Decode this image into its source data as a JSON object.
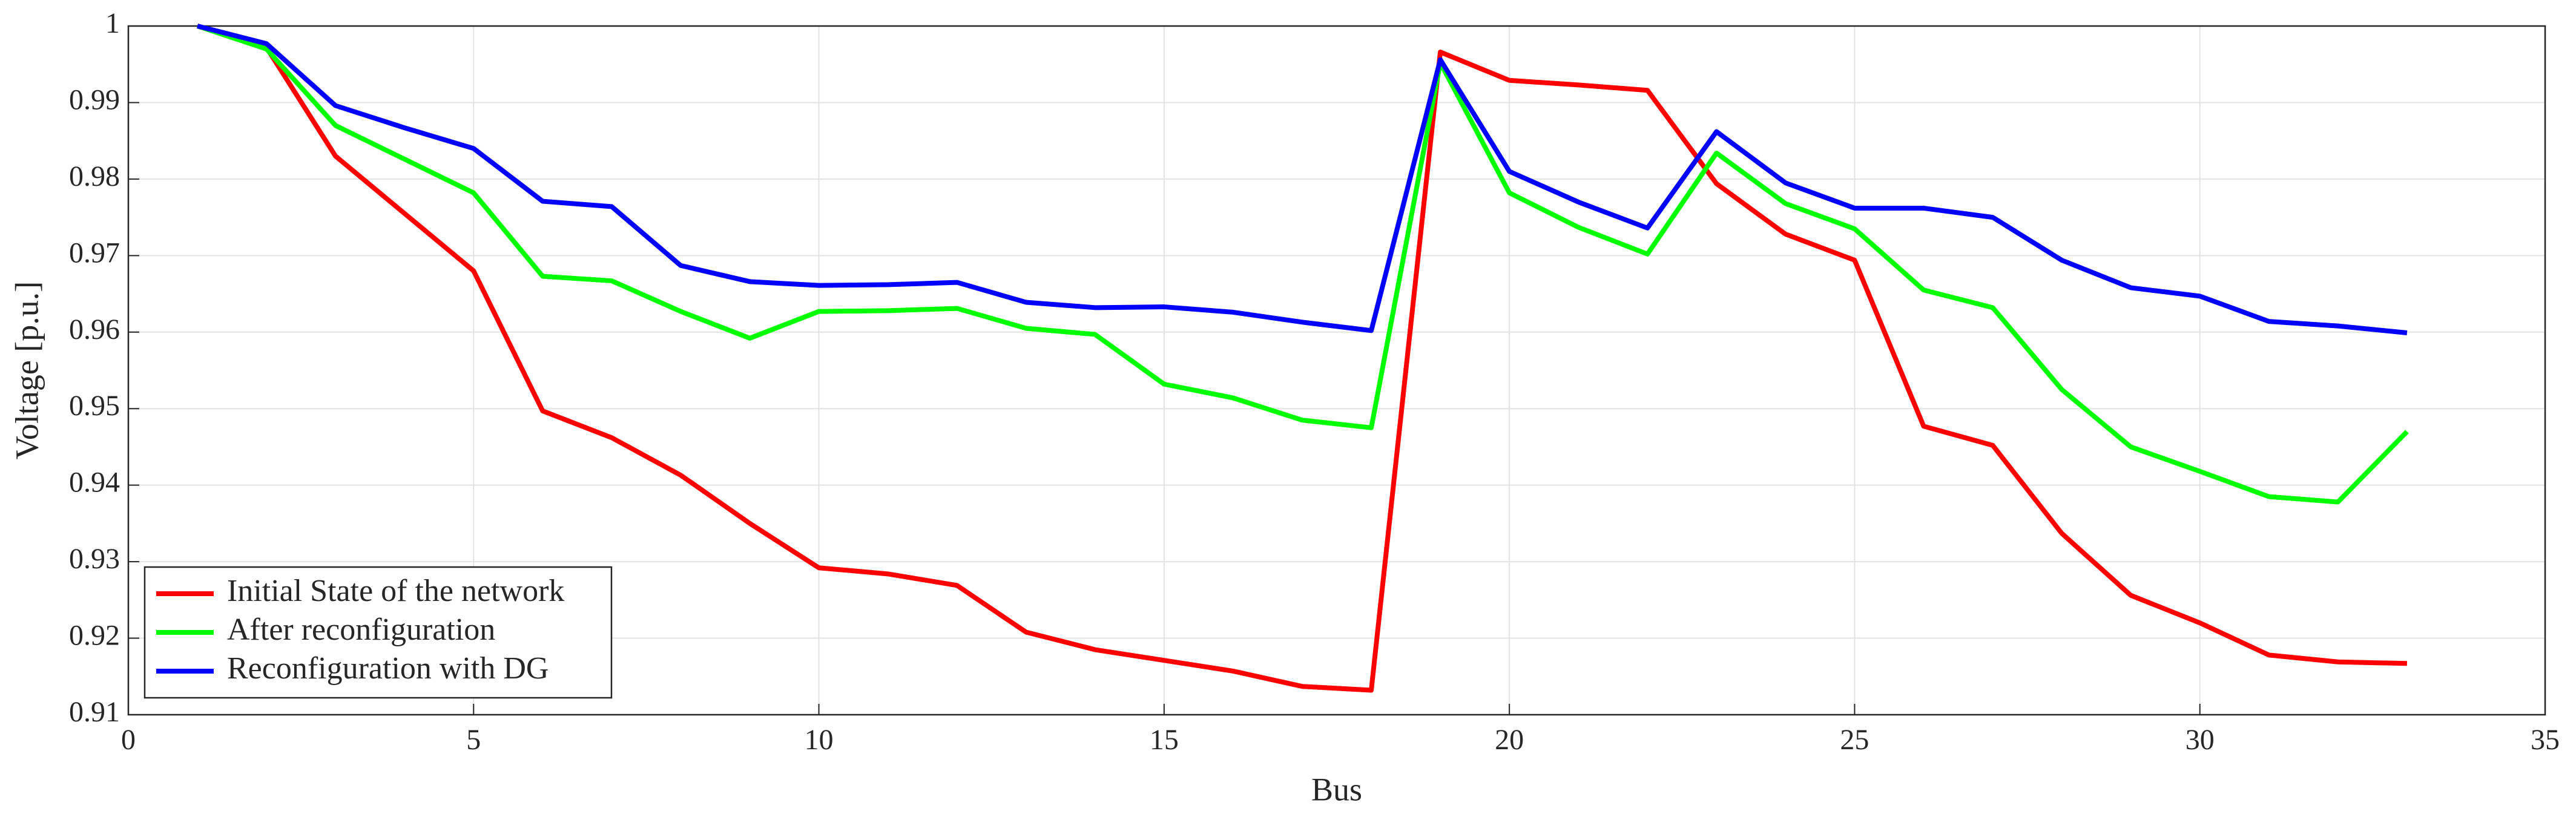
{
  "chart_data": {
    "type": "line",
    "x_label": "Bus",
    "y_label": "Voltage [p.u.]",
    "x": [
      1,
      2,
      3,
      4,
      5,
      6,
      7,
      8,
      9,
      10,
      11,
      12,
      13,
      14,
      15,
      16,
      17,
      18,
      19,
      20,
      21,
      22,
      23,
      24,
      25,
      26,
      27,
      28,
      29,
      30,
      31,
      32,
      33
    ],
    "series": [
      {
        "name": "Initial State of the network",
        "color": "#ff0000",
        "values": [
          1.0,
          0.9972,
          0.983,
          0.9755,
          0.968,
          0.9497,
          0.9462,
          0.9413,
          0.935,
          0.9292,
          0.9284,
          0.9269,
          0.9208,
          0.9185,
          0.9171,
          0.9157,
          0.9137,
          0.9132,
          0.9966,
          0.9929,
          0.9923,
          0.9916,
          0.9794,
          0.9728,
          0.9694,
          0.9477,
          0.9452,
          0.9337,
          0.9256,
          0.922,
          0.9178,
          0.9169,
          0.9167
        ]
      },
      {
        "name": "After reconfiguration",
        "color": "#00ff00",
        "values": [
          1.0,
          0.997,
          0.987,
          0.9826,
          0.9782,
          0.9673,
          0.9667,
          0.9627,
          0.9592,
          0.9627,
          0.9628,
          0.9631,
          0.9605,
          0.9597,
          0.9532,
          0.9514,
          0.9485,
          0.9475,
          0.9952,
          0.9782,
          0.9737,
          0.9702,
          0.9834,
          0.9768,
          0.9735,
          0.9655,
          0.9632,
          0.9525,
          0.945,
          0.9418,
          0.9385,
          0.9378,
          0.947
        ]
      },
      {
        "name": "Reconfiguration with DG",
        "color": "#0000ff",
        "values": [
          1.0,
          0.9977,
          0.9896,
          0.9867,
          0.984,
          0.9771,
          0.9764,
          0.9687,
          0.9666,
          0.9661,
          0.9662,
          0.9665,
          0.9639,
          0.9632,
          0.9633,
          0.9626,
          0.9613,
          0.9602,
          0.9956,
          0.981,
          0.977,
          0.9736,
          0.9862,
          0.9795,
          0.9762,
          0.9762,
          0.975,
          0.9694,
          0.9658,
          0.9647,
          0.9614,
          0.9608,
          0.9599
        ]
      }
    ],
    "xlim": [
      0,
      35
    ],
    "xticks": [
      0,
      5,
      10,
      15,
      20,
      25,
      30,
      35
    ],
    "ylim": [
      0.91,
      1
    ],
    "yticks": [
      0.91,
      0.92,
      0.93,
      0.94,
      0.95,
      0.96,
      0.97,
      0.98,
      0.99,
      1
    ],
    "grid": true,
    "legend_position": "lower left"
  }
}
